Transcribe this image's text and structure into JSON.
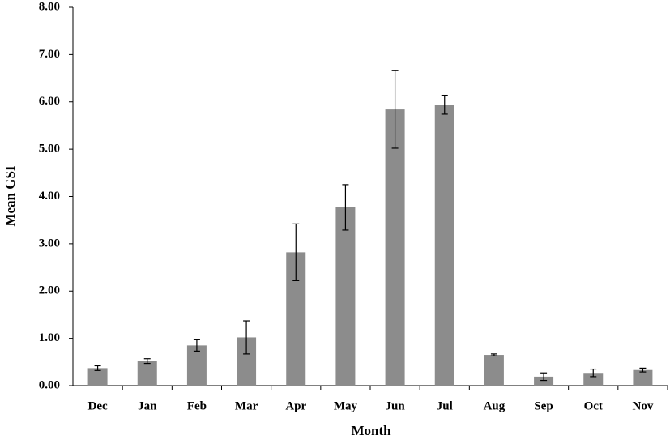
{
  "chart_data": {
    "type": "bar",
    "x_label": "Month",
    "y_label": "Mean GSI",
    "categories": [
      "Dec",
      "Jan",
      "Feb",
      "Mar",
      "Apr",
      "May",
      "Jun",
      "Jul",
      "Aug",
      "Sep",
      "Oct",
      "Nov"
    ],
    "values": [
      0.37,
      0.52,
      0.85,
      1.02,
      2.82,
      3.77,
      5.84,
      5.94,
      0.65,
      0.19,
      0.27,
      0.33
    ],
    "errors": [
      0.05,
      0.05,
      0.12,
      0.35,
      0.6,
      0.48,
      0.82,
      0.2,
      0.02,
      0.08,
      0.08,
      0.04
    ],
    "color": "#8c8c8c",
    "ylim": [
      0,
      8
    ],
    "yticks": [
      {
        "value": 0,
        "label": "0.00"
      },
      {
        "value": 1,
        "label": "1.00"
      },
      {
        "value": 2,
        "label": "2.00"
      },
      {
        "value": 3,
        "label": "3.00"
      },
      {
        "value": 4,
        "label": "4.00"
      },
      {
        "value": 5,
        "label": "5.00"
      },
      {
        "value": 6,
        "label": "6.00"
      },
      {
        "value": 7,
        "label": "7.00"
      },
      {
        "value": 8,
        "label": "8.00"
      }
    ],
    "grid": false
  }
}
